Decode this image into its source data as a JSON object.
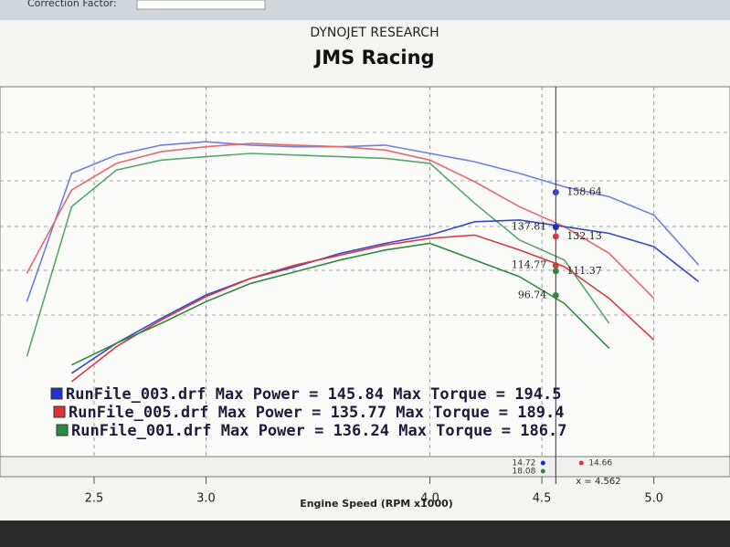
{
  "toolbar_label": "Correction Factor:",
  "chart_data": {
    "type": "line",
    "title": "DYNOJET RESEARCH",
    "subtitle": "JMS Racing",
    "x_label": "Engine Speed (RPM x1000)",
    "x": [
      2.2,
      2.4,
      2.6,
      2.8,
      3.0,
      3.2,
      3.4,
      3.6,
      3.8,
      4.0,
      4.2,
      4.4,
      4.6,
      4.8,
      5.0,
      5.2
    ],
    "xlim": [
      2.08,
      5.34
    ],
    "xticks": [
      2.5,
      {
        "value": 3,
        "label": "3.0"
      },
      {
        "value": 4,
        "label": "4.0"
      },
      4.5,
      {
        "value": 5,
        "label": "5.0"
      }
    ],
    "ylim": [
      0,
      222
    ],
    "grid": true,
    "series": [
      {
        "color": "#6f7fe0",
        "values": [
          93,
          170,
          181,
          187,
          189,
          187,
          186,
          186,
          187,
          182,
          177,
          170,
          162,
          156,
          145,
          115
        ]
      },
      {
        "color": "#e86a6a",
        "values": [
          110,
          160,
          176,
          183,
          186,
          188,
          187,
          186,
          184,
          178,
          165,
          150,
          138,
          122,
          95,
          null
        ]
      },
      {
        "color": "#5aa66a",
        "values": [
          60,
          150,
          172,
          178,
          180,
          182,
          181,
          180,
          179,
          176,
          152,
          130,
          118,
          80,
          null,
          null
        ]
      },
      {
        "color": "#3848c8",
        "values": [
          null,
          50,
          68,
          83,
          97,
          107,
          114,
          122,
          128,
          133,
          141,
          142,
          138,
          134,
          126,
          105
        ]
      },
      {
        "color": "#d83a3a",
        "values": [
          null,
          45,
          66,
          82,
          96,
          107,
          115,
          121,
          127,
          131,
          133,
          124,
          114,
          95,
          70,
          null
        ]
      },
      {
        "color": "#2f8a3f",
        "values": [
          null,
          55,
          68,
          80,
          93,
          104,
          111,
          118,
          124,
          128,
          118,
          108,
          92,
          65,
          null,
          null
        ]
      }
    ],
    "legend": [
      {
        "text": "RunFile_003.drf Max Power = 145.84  Max Torque = 194.5",
        "color": "#2233cc"
      },
      {
        "text": "RunFile_005.drf Max Power = 135.77  Max Torque = 189.4",
        "color": "#dd3333"
      },
      {
        "text": "RunFile_001.drf Max Power = 136.24  Max Torque = 186.7",
        "color": "#2f8a3f"
      }
    ],
    "cursor": {
      "value": 4.562,
      "label": "x = 4.562",
      "readouts": [
        {
          "value": 158.64,
          "color": "#3848c8"
        },
        {
          "value": 137.81,
          "color": "#1a2ad0"
        },
        {
          "value": 132.13,
          "color": "#d83a3a"
        },
        {
          "value": 114.77,
          "color": "#d83a3a"
        },
        {
          "value": 111.37,
          "color": "#2f8a3f"
        },
        {
          "value": 96.74,
          "color": "#2f8a3f"
        }
      ]
    },
    "afr_readouts": [
      {
        "value": 14.72,
        "color": "#1a2ad0"
      },
      {
        "value": 18.08,
        "color": "#2f8a3f"
      },
      {
        "value": 14.66,
        "color": "#d83a3a"
      }
    ]
  }
}
